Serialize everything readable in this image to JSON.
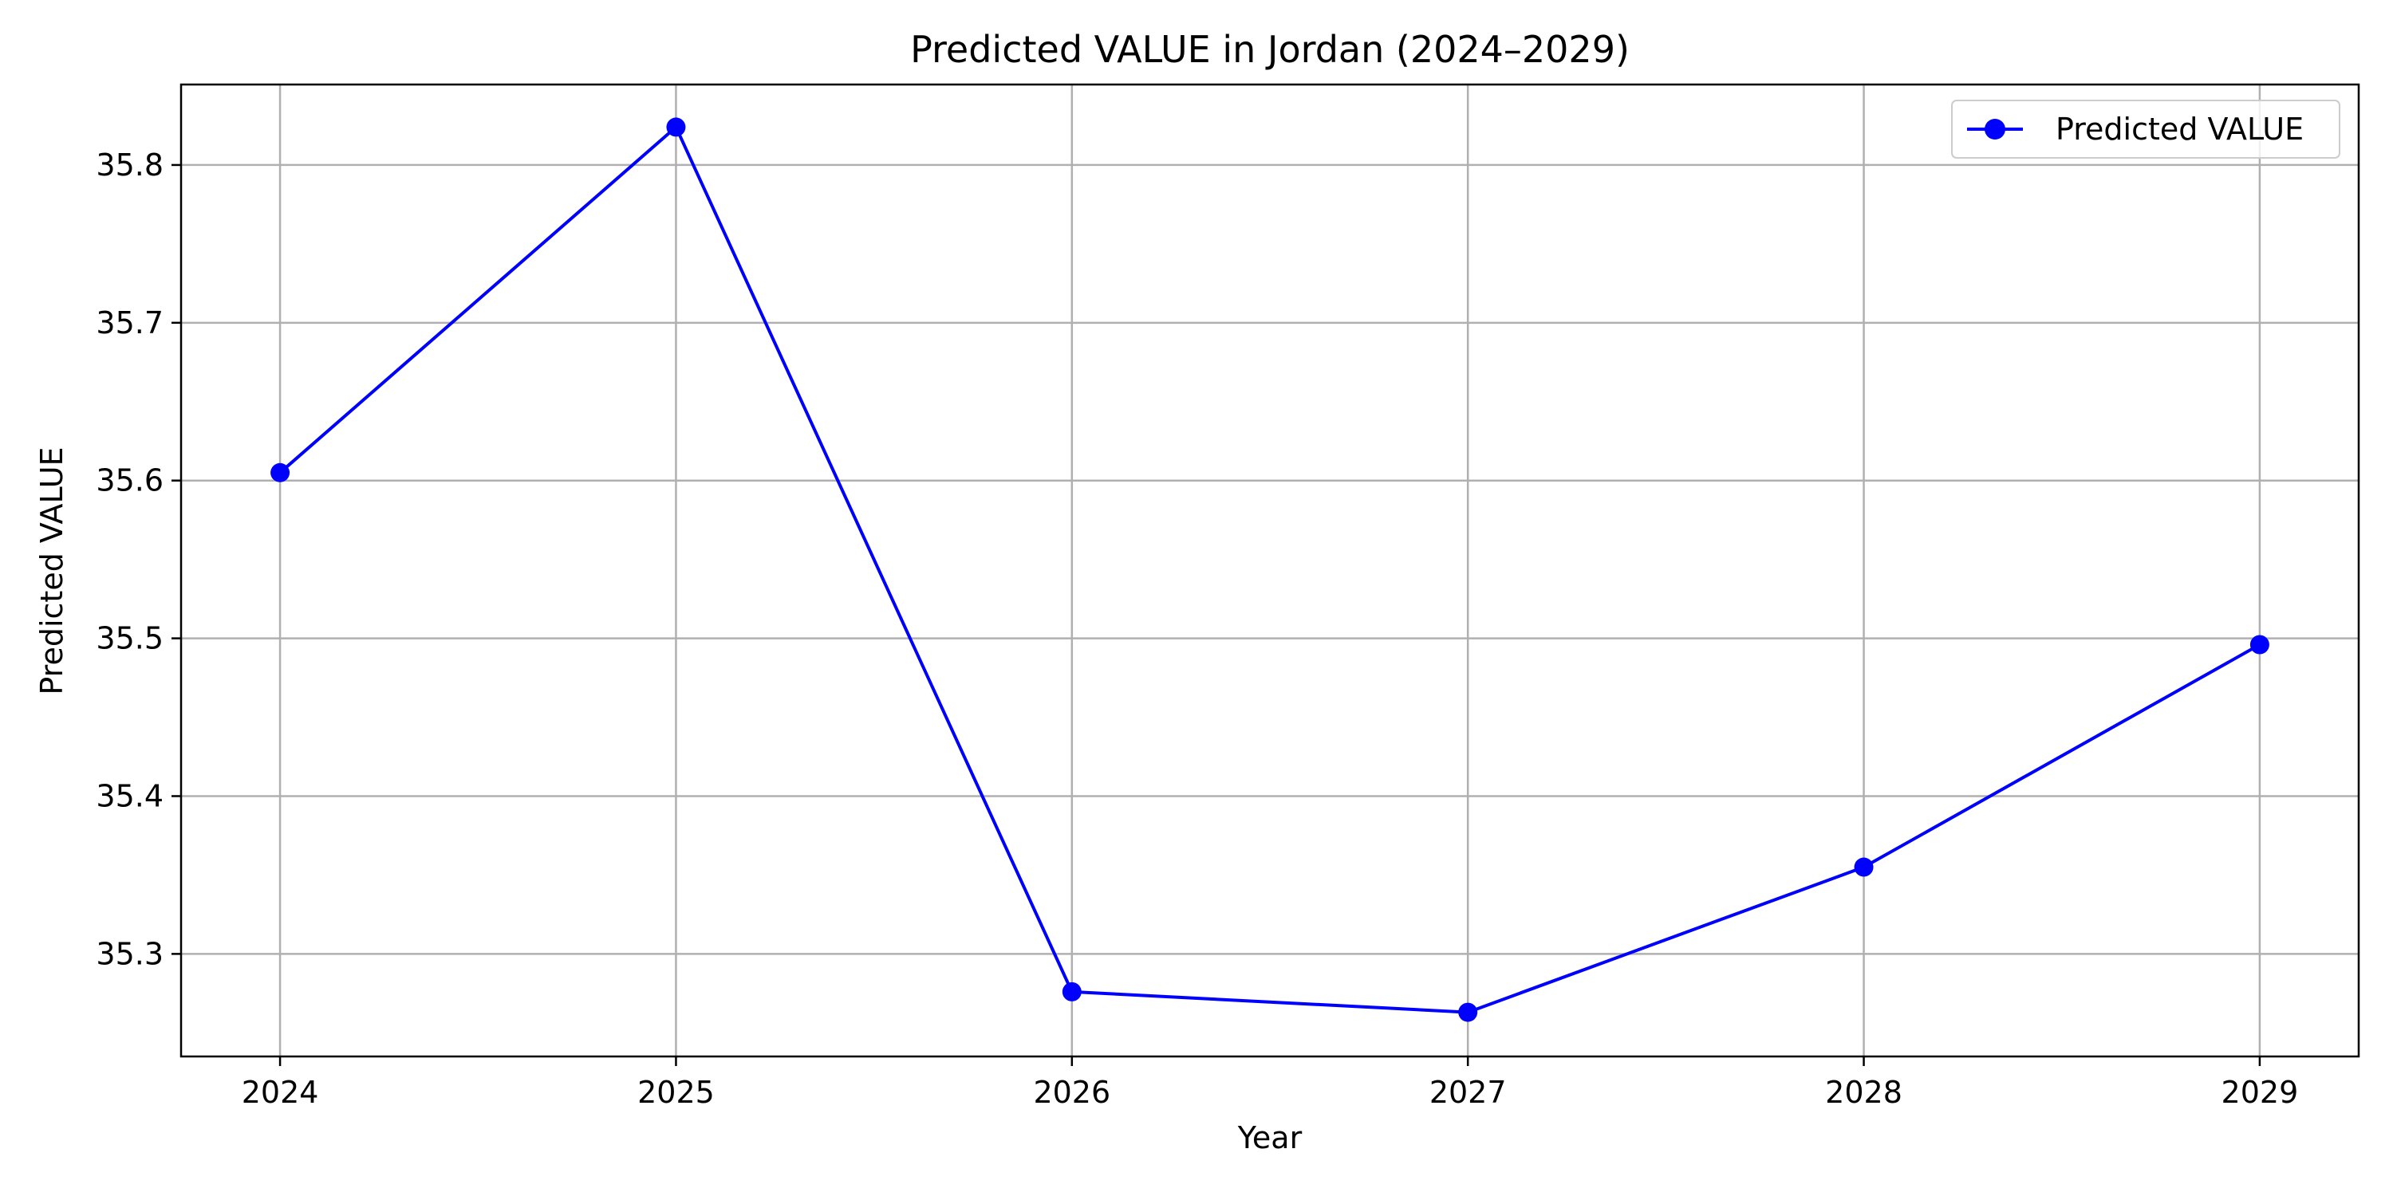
{
  "chart_data": {
    "type": "line",
    "title": "Predicted VALUE in Jordan (2024–2029)",
    "xlabel": "Year",
    "ylabel": "Predicted VALUE",
    "x": [
      2024,
      2025,
      2026,
      2027,
      2028,
      2029
    ],
    "x_tick_labels": [
      "2024",
      "2025",
      "2026",
      "2027",
      "2028",
      "2029"
    ],
    "y_tick_values": [
      35.3,
      35.4,
      35.5,
      35.6,
      35.7,
      35.8
    ],
    "y_tick_labels": [
      "35.3",
      "35.4",
      "35.5",
      "35.6",
      "35.7",
      "35.8"
    ],
    "xlim": [
      2023.75,
      2029.25
    ],
    "ylim": [
      35.235,
      35.851
    ],
    "grid": true,
    "legend_position": "top-right",
    "series": [
      {
        "name": "Predicted VALUE",
        "values": [
          35.605,
          35.824,
          35.276,
          35.263,
          35.355,
          35.496
        ],
        "color": "#0000ff",
        "marker": "circle"
      }
    ],
    "colors": {
      "grid": "#b0b0b0",
      "axes": "#000000",
      "background": "#ffffff"
    }
  }
}
